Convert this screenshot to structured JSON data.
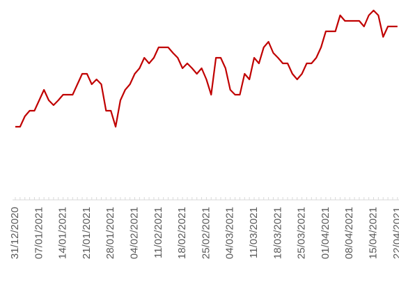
{
  "chart_data": {
    "type": "line",
    "categories": [
      "31/12/2020",
      null,
      null,
      null,
      null,
      "07/01/2021",
      null,
      null,
      null,
      null,
      "14/01/2021",
      null,
      null,
      null,
      null,
      "21/01/2021",
      null,
      null,
      null,
      null,
      "28/01/2021",
      null,
      null,
      null,
      null,
      "04/02/2021",
      null,
      null,
      null,
      null,
      "11/02/2021",
      null,
      null,
      null,
      null,
      "18/02/2021",
      null,
      null,
      null,
      null,
      "25/02/2021",
      null,
      null,
      null,
      null,
      "04/03/2021",
      null,
      null,
      null,
      null,
      "11/03/2021",
      null,
      null,
      null,
      null,
      "18/03/2021",
      null,
      null,
      null,
      null,
      "25/03/2021",
      null,
      null,
      null,
      null,
      "01/04/2021",
      null,
      null,
      null,
      null,
      "08/04/2021",
      null,
      null,
      null,
      null,
      "15/04/2021",
      null,
      null,
      null,
      null,
      "22/04/2021"
    ],
    "series": [
      {
        "color": "#c00000",
        "values": [
          18,
          18,
          33,
          41,
          41,
          56,
          71,
          56,
          49,
          56,
          64,
          64,
          64,
          79,
          94,
          94,
          79,
          86,
          79,
          41,
          41,
          18,
          56,
          71,
          79,
          94,
          102,
          117,
          109,
          117,
          132,
          132,
          132,
          124,
          117,
          102,
          109,
          102,
          94,
          102,
          86,
          64,
          117,
          117,
          102,
          71,
          64,
          64,
          94,
          86,
          117,
          109,
          132,
          140,
          124,
          117,
          109,
          109,
          94,
          86,
          94,
          109,
          109,
          117,
          132,
          155,
          155,
          155,
          178,
          170,
          170,
          170,
          170,
          162,
          178,
          185,
          178,
          147,
          162,
          162,
          162
        ]
      }
    ],
    "ylim": [
      0,
      200
    ]
  }
}
